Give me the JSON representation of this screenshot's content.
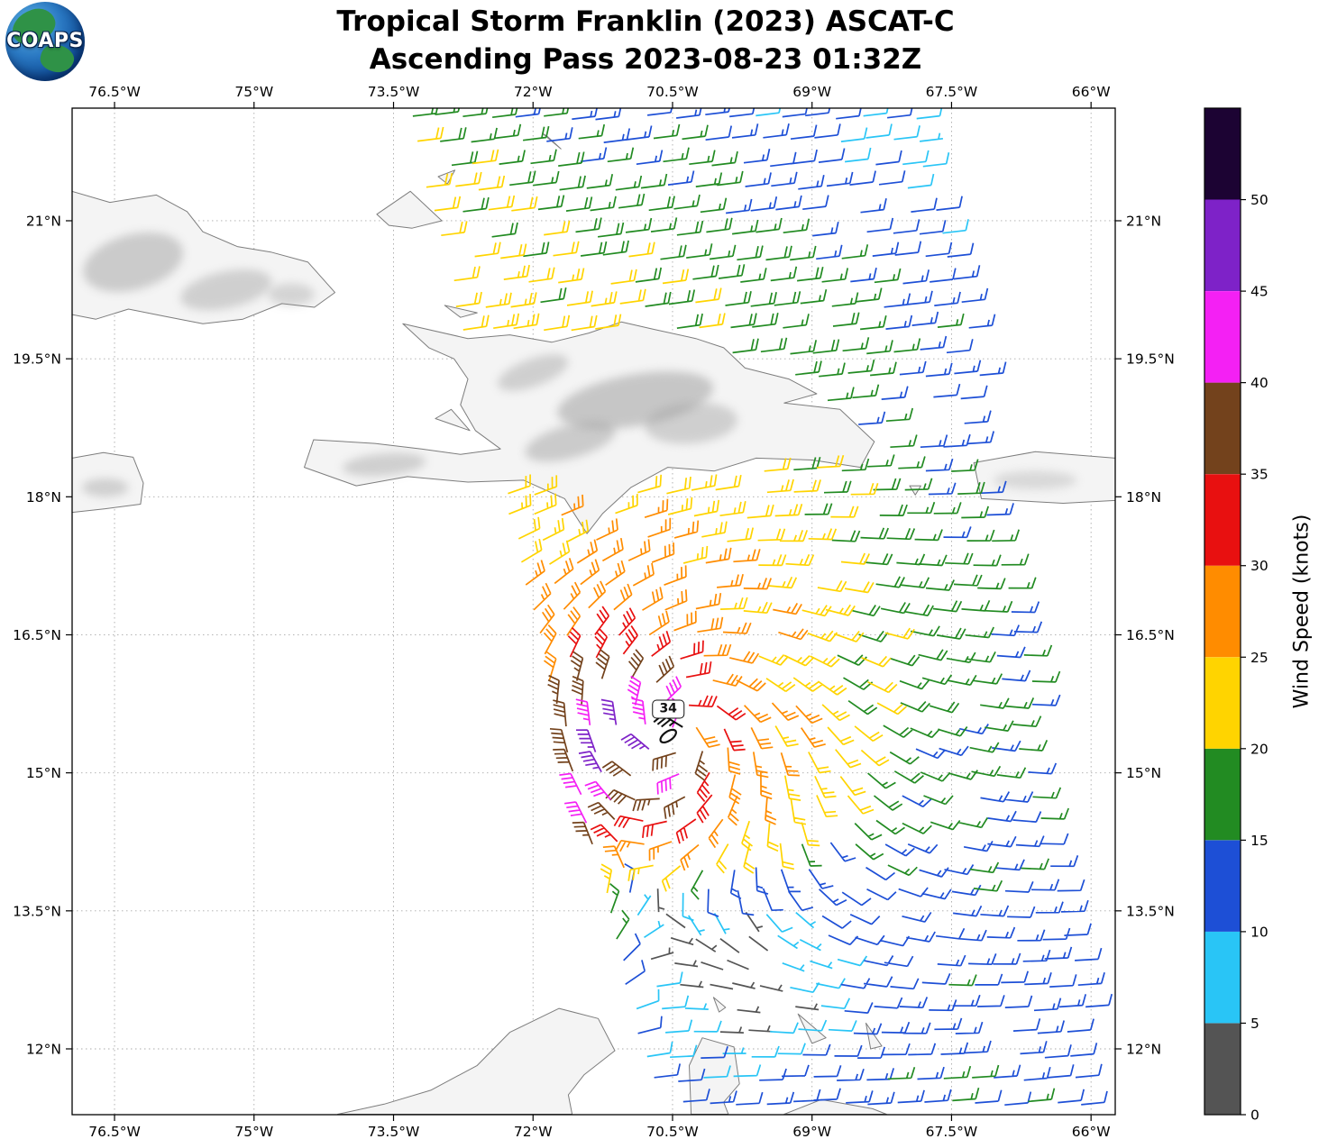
{
  "header": {
    "title_line1": "Tropical Storm Franklin (2023) ASCAT-C",
    "title_line2": "Ascending Pass 2023-08-23 01:32Z",
    "logo_text": "COAPS"
  },
  "chart_data": {
    "type": "wind_barb_map",
    "title": "Tropical Storm Franklin (2023) ASCAT-C",
    "subtitle": "Ascending Pass 2023-08-23 01:32Z",
    "bounds": {
      "lon_min": -76.956,
      "lon_max": -65.74,
      "lat_min": 11.285,
      "lat_max": 22.224
    },
    "axes": {
      "xticks": [
        {
          "v": -76.5,
          "label": "76.5°W"
        },
        {
          "v": -75.0,
          "label": "75°W"
        },
        {
          "v": -73.5,
          "label": "73.5°W"
        },
        {
          "v": -72.0,
          "label": "72°W"
        },
        {
          "v": -70.5,
          "label": "70.5°W"
        },
        {
          "v": -69.0,
          "label": "69°W"
        },
        {
          "v": -67.5,
          "label": "67.5°W"
        },
        {
          "v": -66.0,
          "label": "66°W"
        }
      ],
      "yticks": [
        {
          "v": 21.0,
          "label": "21°N"
        },
        {
          "v": 19.5,
          "label": "19.5°N"
        },
        {
          "v": 18.0,
          "label": "18°N"
        },
        {
          "v": 16.5,
          "label": "16.5°N"
        },
        {
          "v": 15.0,
          "label": "15°N"
        },
        {
          "v": 13.5,
          "label": "13.5°N"
        },
        {
          "v": 12.0,
          "label": "12°N"
        }
      ]
    },
    "colorbar": {
      "label": "Wind Speed (knots)",
      "min": 0,
      "max": 55,
      "ticks": [
        0,
        5,
        10,
        15,
        20,
        25,
        30,
        35,
        40,
        45,
        50
      ],
      "segments": [
        {
          "from": 0,
          "to": 5,
          "color": "#545454"
        },
        {
          "from": 5,
          "to": 10,
          "color": "#29c5f6"
        },
        {
          "from": 10,
          "to": 15,
          "color": "#1d4fd6"
        },
        {
          "from": 15,
          "to": 20,
          "color": "#228b22"
        },
        {
          "from": 20,
          "to": 25,
          "color": "#ffd400"
        },
        {
          "from": 25,
          "to": 30,
          "color": "#ff8c00"
        },
        {
          "from": 30,
          "to": 35,
          "color": "#e81010"
        },
        {
          "from": 35,
          "to": 40,
          "color": "#73421c"
        },
        {
          "from": 40,
          "to": 45,
          "color": "#f420f4"
        },
        {
          "from": 45,
          "to": 50,
          "color": "#7e22c8"
        },
        {
          "from": 50,
          "to": 55,
          "color": "#1c0333"
        }
      ]
    },
    "storm_center": {
      "label": "34",
      "lon": -70.43,
      "lat": 15.38
    },
    "swath": {
      "lat0": 11.3,
      "left0": -70.8,
      "left_slope": -0.248,
      "right0": -65.76,
      "right_slope": -0.165
    },
    "grid": {
      "dlat": 0.255,
      "dlon": 0.285
    },
    "wind_model": {
      "center": {
        "lon": -70.45,
        "lat": 15.45
      },
      "vortex": {
        "peak": 32,
        "rmax": 0.5,
        "asym": 0.2,
        "asym_dir": 3.4,
        "decay": 3.2,
        "inflow": 0.35
      },
      "ambient_north": {
        "base": 21.5,
        "lon_ref": -72.2,
        "lon_grad": 1.9,
        "lat_ref": 20.4,
        "lat_grad": 3.2
      },
      "ambient_south": {
        "base": 16.5,
        "lon_ref": -70.0,
        "lon_grad": 0.9
      },
      "ambient_min": 6,
      "ambient_storm_shadow": {
        "depth": 0.65,
        "radius": 1.6
      },
      "rotate_k_radius": 1.9,
      "trade_dir": [
        -1,
        -0.12
      ],
      "band": {
        "lon0": -71.32,
        "tilt": 0.05,
        "width": 0.42,
        "amp": 20,
        "lat0": 14.2,
        "lat_sigma": 1.6,
        "dir": -1.75
      },
      "calm": {
        "lon": -69.85,
        "lat": 12.8,
        "radius": 0.95,
        "depth": 0.85
      },
      "jitter": 2.2,
      "dropout": 0.06
    },
    "style": {
      "land_fill": "#f4f4f4",
      "coast": "#7d7d7d",
      "grid_color": "#aaaaaa",
      "border": "#000000",
      "terrain": "#9a9a9a",
      "storm_marker": "#111111"
    },
    "land": [
      {
        "name": "cuba",
        "mask": false,
        "pts": [
          [
            -76.96,
            21.32
          ],
          [
            -76.55,
            21.2
          ],
          [
            -76.05,
            21.28
          ],
          [
            -75.72,
            21.1
          ],
          [
            -75.55,
            20.88
          ],
          [
            -75.18,
            20.72
          ],
          [
            -74.82,
            20.66
          ],
          [
            -74.42,
            20.55
          ],
          [
            -74.13,
            20.22
          ],
          [
            -74.35,
            20.06
          ],
          [
            -74.7,
            20.1
          ],
          [
            -75.12,
            19.93
          ],
          [
            -75.55,
            19.88
          ],
          [
            -75.95,
            19.96
          ],
          [
            -76.35,
            20.04
          ],
          [
            -76.7,
            19.93
          ],
          [
            -76.96,
            19.98
          ]
        ]
      },
      {
        "name": "hispaniola",
        "mask": true,
        "pts": [
          [
            -73.4,
            19.88
          ],
          [
            -72.7,
            19.72
          ],
          [
            -72.25,
            19.76
          ],
          [
            -71.8,
            19.68
          ],
          [
            -71.4,
            19.78
          ],
          [
            -71.05,
            19.9
          ],
          [
            -70.7,
            19.82
          ],
          [
            -70.25,
            19.72
          ],
          [
            -69.95,
            19.62
          ],
          [
            -69.72,
            19.4
          ],
          [
            -69.25,
            19.28
          ],
          [
            -68.95,
            19.12
          ],
          [
            -69.3,
            19.02
          ],
          [
            -68.7,
            18.95
          ],
          [
            -68.33,
            18.6
          ],
          [
            -68.48,
            18.32
          ],
          [
            -69.0,
            18.4
          ],
          [
            -69.6,
            18.42
          ],
          [
            -70.05,
            18.28
          ],
          [
            -70.55,
            18.32
          ],
          [
            -70.95,
            18.1
          ],
          [
            -71.25,
            17.82
          ],
          [
            -71.42,
            17.6
          ],
          [
            -71.66,
            17.98
          ],
          [
            -72.1,
            18.18
          ],
          [
            -72.7,
            18.16
          ],
          [
            -73.35,
            18.22
          ],
          [
            -73.9,
            18.12
          ],
          [
            -74.46,
            18.32
          ],
          [
            -74.36,
            18.62
          ],
          [
            -73.7,
            18.58
          ],
          [
            -73.2,
            18.52
          ],
          [
            -72.78,
            18.46
          ],
          [
            -72.35,
            18.52
          ],
          [
            -72.62,
            18.72
          ],
          [
            -72.78,
            19.0
          ],
          [
            -72.7,
            19.28
          ],
          [
            -72.85,
            19.5
          ],
          [
            -73.12,
            19.62
          ]
        ]
      },
      {
        "name": "gonave-island",
        "mask": true,
        "pts": [
          [
            -73.05,
            18.85
          ],
          [
            -72.68,
            18.72
          ],
          [
            -72.88,
            18.95
          ]
        ]
      },
      {
        "name": "tortuga-island",
        "mask": false,
        "pts": [
          [
            -72.95,
            20.08
          ],
          [
            -72.6,
            20.0
          ],
          [
            -72.78,
            19.95
          ]
        ]
      },
      {
        "name": "jamaica",
        "mask": false,
        "pts": [
          [
            -76.96,
            18.42
          ],
          [
            -76.62,
            18.48
          ],
          [
            -76.3,
            18.43
          ],
          [
            -76.19,
            18.15
          ],
          [
            -76.22,
            17.92
          ],
          [
            -76.6,
            17.87
          ],
          [
            -76.96,
            17.83
          ]
        ]
      },
      {
        "name": "puerto-rico",
        "mask": true,
        "pts": [
          [
            -67.26,
            18.37
          ],
          [
            -66.6,
            18.49
          ],
          [
            -65.74,
            18.42
          ],
          [
            -65.74,
            17.96
          ],
          [
            -66.3,
            17.93
          ],
          [
            -67.18,
            17.98
          ]
        ]
      },
      {
        "name": "mona-island",
        "mask": false,
        "pts": [
          [
            -67.95,
            18.12
          ],
          [
            -67.83,
            18.12
          ],
          [
            -67.89,
            18.02
          ]
        ]
      },
      {
        "name": "great-inagua",
        "mask": false,
        "pts": [
          [
            -73.68,
            21.07
          ],
          [
            -73.32,
            21.32
          ],
          [
            -72.98,
            21.0
          ],
          [
            -73.3,
            20.92
          ],
          [
            -73.55,
            20.95
          ]
        ]
      },
      {
        "name": "little-inagua",
        "mask": false,
        "pts": [
          [
            -73.02,
            21.48
          ],
          [
            -72.84,
            21.55
          ],
          [
            -72.92,
            21.4
          ]
        ]
      },
      {
        "name": "turks-islands",
        "mask": false,
        "pts": [
          [
            -71.9,
            21.95
          ],
          [
            -71.7,
            21.78
          ],
          [
            -71.85,
            21.92
          ]
        ]
      },
      {
        "name": "colombia-guajira",
        "mask": false,
        "pts": [
          [
            -74.1,
            11.29
          ],
          [
            -73.6,
            11.4
          ],
          [
            -73.1,
            11.55
          ],
          [
            -72.6,
            11.82
          ],
          [
            -72.25,
            12.18
          ],
          [
            -71.72,
            12.44
          ],
          [
            -71.3,
            12.33
          ],
          [
            -71.12,
            11.98
          ],
          [
            -71.45,
            11.72
          ],
          [
            -71.62,
            11.5
          ],
          [
            -71.58,
            11.29
          ]
        ]
      },
      {
        "name": "paraguana-venezuela",
        "mask": false,
        "pts": [
          [
            -70.3,
            11.29
          ],
          [
            -70.32,
            11.82
          ],
          [
            -70.18,
            12.12
          ],
          [
            -69.84,
            12.02
          ],
          [
            -69.78,
            11.62
          ],
          [
            -69.95,
            11.42
          ],
          [
            -69.9,
            11.29
          ]
        ]
      },
      {
        "name": "venezuela-coast",
        "mask": false,
        "pts": [
          [
            -69.3,
            11.29
          ],
          [
            -68.9,
            11.45
          ],
          [
            -68.35,
            11.35
          ],
          [
            -68.2,
            11.29
          ]
        ]
      },
      {
        "name": "aruba",
        "mask": false,
        "pts": [
          [
            -70.06,
            12.56
          ],
          [
            -69.93,
            12.45
          ],
          [
            -70.0,
            12.4
          ]
        ]
      },
      {
        "name": "curacao",
        "mask": false,
        "pts": [
          [
            -69.15,
            12.38
          ],
          [
            -68.85,
            12.12
          ],
          [
            -69.0,
            12.06
          ]
        ]
      },
      {
        "name": "bonaire",
        "mask": false,
        "pts": [
          [
            -68.42,
            12.28
          ],
          [
            -68.25,
            12.03
          ],
          [
            -68.37,
            12.0
          ]
        ]
      }
    ],
    "terrain_shading": [
      {
        "lon": -70.9,
        "lat": 19.05,
        "rx": 0.85,
        "ry": 0.28,
        "rot": -10,
        "o": 0.5
      },
      {
        "lon": -71.6,
        "lat": 18.6,
        "rx": 0.5,
        "ry": 0.18,
        "rot": -15,
        "o": 0.45
      },
      {
        "lon": -70.3,
        "lat": 18.8,
        "rx": 0.5,
        "ry": 0.22,
        "rot": -5,
        "o": 0.4
      },
      {
        "lon": -72.0,
        "lat": 19.35,
        "rx": 0.4,
        "ry": 0.15,
        "rot": -20,
        "o": 0.4
      },
      {
        "lon": -73.6,
        "lat": 18.35,
        "rx": 0.45,
        "ry": 0.12,
        "rot": -5,
        "o": 0.4
      },
      {
        "lon": -76.3,
        "lat": 20.55,
        "rx": 0.55,
        "ry": 0.3,
        "rot": -15,
        "o": 0.45
      },
      {
        "lon": -75.3,
        "lat": 20.25,
        "rx": 0.5,
        "ry": 0.2,
        "rot": -12,
        "o": 0.4
      },
      {
        "lon": -74.6,
        "lat": 20.2,
        "rx": 0.25,
        "ry": 0.12,
        "rot": 0,
        "o": 0.35
      },
      {
        "lon": -76.6,
        "lat": 18.1,
        "rx": 0.25,
        "ry": 0.1,
        "rot": 0,
        "o": 0.4
      },
      {
        "lon": -66.6,
        "lat": 18.18,
        "rx": 0.45,
        "ry": 0.1,
        "rot": 0,
        "o": 0.3
      }
    ]
  }
}
